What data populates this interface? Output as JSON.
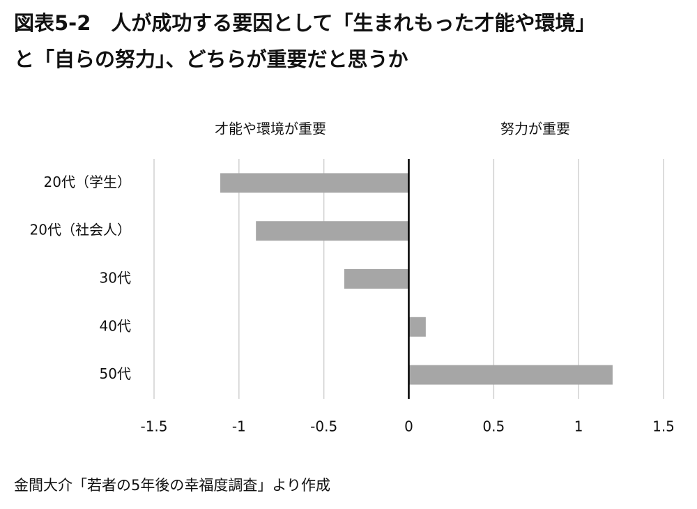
{
  "chart_data": {
    "type": "bar",
    "orientation": "horizontal",
    "title": [
      "図表5-2　人が成功する要因として「生まれもった才能や環境」",
      "と「自らの努力」、どちらが重要だと思うか"
    ],
    "annotations": [
      "才能や環境が重要",
      "努力が重要"
    ],
    "categories": [
      "20代（学生）",
      "20代（社会人）",
      "30代",
      "40代",
      "50代"
    ],
    "values": [
      -1.11,
      -0.9,
      -0.38,
      0.1,
      1.2
    ],
    "color": "#a6a6a6",
    "xlim": [
      -1.5,
      1.5
    ],
    "xticks": [
      -1.5,
      -1,
      -0.5,
      0,
      0.5,
      1,
      1.5
    ],
    "grid": true,
    "source": "金間大介「若者の5年後の幸福度調査」より作成"
  }
}
